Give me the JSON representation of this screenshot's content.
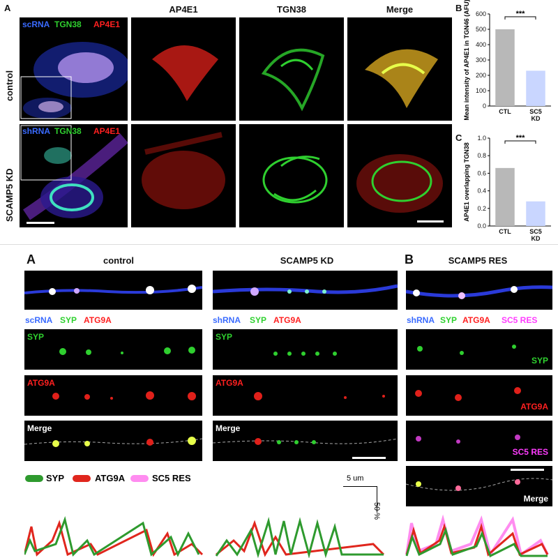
{
  "top": {
    "panel_letter_A": "A",
    "panel_letter_B": "B",
    "panel_letter_C": "C",
    "columns": [
      "AP4E1",
      "TGN38",
      "Merge"
    ],
    "row_labels": [
      "control",
      "SCAMP5 KD"
    ],
    "overlay_control": {
      "c1": "scRNA",
      "c2": "TGN38",
      "c3": "AP4E1"
    },
    "overlay_kd": {
      "c1": "shRNA",
      "c2": "TGN38",
      "c3": "AP4E1"
    }
  },
  "bottom": {
    "panel_letter_A": "A",
    "panel_letter_B": "B",
    "headers": [
      "control",
      "SCAMP5 KD",
      "SCAMP5 RES"
    ],
    "channel_row_control": [
      "scRNA",
      "SYP",
      "ATG9A"
    ],
    "channel_row_kd": [
      "shRNA",
      "SYP",
      "ATG9A"
    ],
    "channel_row_res": [
      "shRNA",
      "SYP",
      "ATG9A",
      "SC5 RES"
    ],
    "label_syp": "SYP",
    "label_atg9a": "ATG9A",
    "label_merge": "Merge",
    "label_sc5res": "SC5 RES",
    "legend": [
      {
        "name": "SYP",
        "color": "#2e9a2e"
      },
      {
        "name": "ATG9A",
        "color": "#e0261d"
      },
      {
        "name": "SC5 RES",
        "color": "#ff8cf0"
      }
    ],
    "scale_x": "5 um",
    "scale_y": "50 %"
  },
  "chart_data": [
    {
      "type": "bar",
      "ylabel": "Mean intensity of AP4E1 in TGN46 (AFU)",
      "categories": [
        "CTL",
        "SC5 KD"
      ],
      "values": [
        500,
        230
      ],
      "ylim": [
        0,
        600
      ],
      "yticks": [
        "0",
        "100",
        "200",
        "300",
        "400",
        "500",
        "600"
      ],
      "significance": "***",
      "colors": [
        "#b8b8b8",
        "#c9d6ff"
      ]
    },
    {
      "type": "bar",
      "ylabel": "AP4E1 overlapping TGN38",
      "categories": [
        "CTL",
        "SC5 KD"
      ],
      "values": [
        0.66,
        0.28
      ],
      "ylim": [
        0,
        1.0
      ],
      "yticks": [
        "0.0",
        "0.2",
        "0.4",
        "0.6",
        "0.8",
        "1.0"
      ],
      "significance": "***",
      "colors": [
        "#b8b8b8",
        "#c9d6ff"
      ]
    }
  ]
}
